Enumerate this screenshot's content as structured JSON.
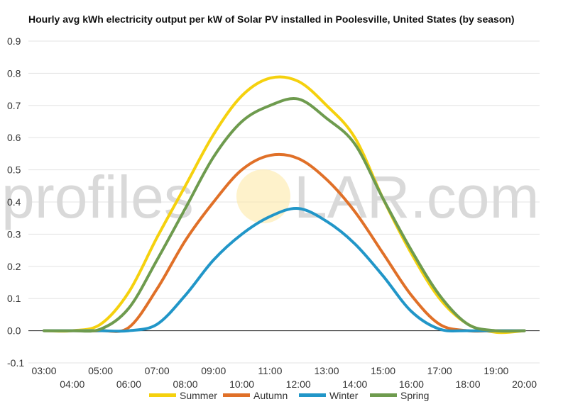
{
  "chart_data": {
    "type": "line",
    "title": "Hourly avg kWh electricity output per kW of Solar PV installed in Poolesville, United States (by season)",
    "xlabel": "",
    "ylabel": "",
    "ylim": [
      -0.1,
      0.9
    ],
    "yticks": [
      "-0.1",
      "0.0",
      "0.1",
      "0.2",
      "0.3",
      "0.4",
      "0.5",
      "0.6",
      "0.7",
      "0.8",
      "0.9"
    ],
    "grid": true,
    "legend_position": "bottom",
    "categories": [
      "03:00",
      "04:00",
      "05:00",
      "06:00",
      "07:00",
      "08:00",
      "09:00",
      "10:00",
      "11:00",
      "12:00",
      "13:00",
      "14:00",
      "15:00",
      "16:00",
      "17:00",
      "18:00",
      "19:00",
      "20:00"
    ],
    "series": [
      {
        "name": "Summer",
        "color": "#f5d10e",
        "values": [
          0.0,
          0.0,
          0.02,
          0.12,
          0.29,
          0.45,
          0.61,
          0.73,
          0.785,
          0.775,
          0.7,
          0.6,
          0.41,
          0.24,
          0.1,
          0.02,
          -0.005,
          0.0
        ]
      },
      {
        "name": "Autumn",
        "color": "#e07028",
        "values": [
          0.0,
          0.0,
          0.0,
          0.01,
          0.13,
          0.28,
          0.4,
          0.5,
          0.545,
          0.535,
          0.47,
          0.37,
          0.24,
          0.11,
          0.02,
          0.0,
          0.0,
          0.0
        ]
      },
      {
        "name": "Winter",
        "color": "#2196c8",
        "values": [
          0.0,
          0.0,
          0.0,
          0.0,
          0.02,
          0.11,
          0.22,
          0.3,
          0.355,
          0.38,
          0.34,
          0.27,
          0.17,
          0.06,
          0.005,
          0.0,
          0.0,
          0.0
        ]
      },
      {
        "name": "Spring",
        "color": "#6e9b4e",
        "values": [
          0.0,
          0.0,
          0.005,
          0.07,
          0.22,
          0.38,
          0.54,
          0.65,
          0.7,
          0.72,
          0.66,
          0.58,
          0.41,
          0.25,
          0.11,
          0.02,
          0.0,
          0.0
        ]
      }
    ]
  },
  "watermark": {
    "left_text": "profiles",
    "right_text": "LAR.com",
    "sun_color": "#fde9a8"
  }
}
